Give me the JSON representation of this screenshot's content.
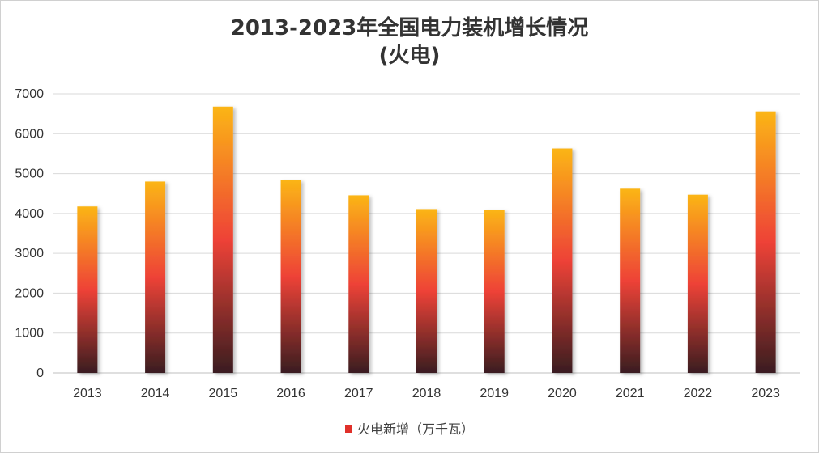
{
  "chart_data": {
    "type": "bar",
    "title": "2013-2023年全国电力装机增长情况",
    "subtitle": "(火电)",
    "categories": [
      "2013",
      "2014",
      "2015",
      "2016",
      "2017",
      "2018",
      "2019",
      "2020",
      "2021",
      "2022",
      "2023"
    ],
    "series": [
      {
        "name": "火电新增（万千瓦）",
        "values": [
          4175,
          4800,
          6680,
          4840,
          4455,
          4110,
          4090,
          5630,
          4620,
          4470,
          6560
        ]
      }
    ],
    "ylim": [
      0,
      7000
    ],
    "yticks": [
      0,
      1000,
      2000,
      3000,
      4000,
      5000,
      6000,
      7000
    ],
    "xlabel": "",
    "ylabel": "",
    "grid": true,
    "legend": "bottom",
    "colors": {
      "bar_top": "#fbb516",
      "bar_mid": "#ee4237",
      "bar_bottom": "#3a1d20",
      "legend_swatch": "#e0302a",
      "grid": "#d9d9d9",
      "axis": "#bfbfbf"
    }
  }
}
